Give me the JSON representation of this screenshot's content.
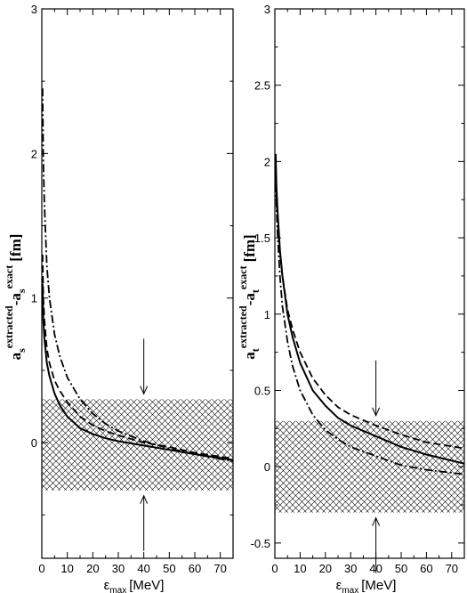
{
  "chart_data": [
    {
      "type": "line",
      "panel": "left",
      "ylabel": {
        "main": "a",
        "sub": "s",
        "sup": "extracted",
        "mid": "-a",
        "sub2": "s",
        "sup2": "exact",
        "unit": "[fm]"
      },
      "xlabel": {
        "main": "ε",
        "sub": "max",
        "unit": "[MeV]"
      },
      "xlim": [
        0,
        75
      ],
      "ylim": [
        -0.8,
        3
      ],
      "xticks": [
        0,
        10,
        20,
        30,
        40,
        50,
        60,
        70
      ],
      "yticks": [
        0,
        1,
        2,
        3
      ],
      "band": [
        -0.33,
        0.3
      ],
      "arrow_x": 40,
      "grid": false,
      "series": [
        {
          "style": "solid",
          "x": [
            0.3,
            0.6,
            1,
            2,
            3,
            5,
            7,
            10,
            15,
            20,
            25,
            30,
            40,
            50,
            60,
            75
          ],
          "values": [
            1.1,
            0.85,
            0.72,
            0.55,
            0.46,
            0.34,
            0.26,
            0.18,
            0.1,
            0.06,
            0.03,
            0.01,
            -0.02,
            -0.05,
            -0.08,
            -0.12
          ]
        },
        {
          "style": "dashed",
          "x": [
            0.3,
            0.6,
            1,
            2,
            3,
            5,
            7,
            10,
            15,
            20,
            25,
            30,
            40,
            50,
            60,
            75
          ],
          "values": [
            1.3,
            1.0,
            0.85,
            0.65,
            0.55,
            0.43,
            0.36,
            0.28,
            0.18,
            0.12,
            0.08,
            0.05,
            0.0,
            -0.03,
            -0.07,
            -0.11
          ]
        },
        {
          "style": "dashdot",
          "x": [
            0.3,
            0.6,
            1,
            2,
            3,
            5,
            7,
            10,
            15,
            20,
            25,
            30,
            40,
            50,
            60,
            75
          ],
          "values": [
            2.45,
            1.95,
            1.65,
            1.22,
            1.0,
            0.75,
            0.6,
            0.45,
            0.3,
            0.2,
            0.13,
            0.08,
            0.01,
            -0.04,
            -0.08,
            -0.13
          ]
        }
      ]
    },
    {
      "type": "line",
      "panel": "right",
      "ylabel": {
        "main": "a",
        "sub": "t",
        "sup": "extracted",
        "mid": "-a",
        "sub2": "t",
        "sup2": "exact",
        "unit": "[fm]"
      },
      "xlabel": {
        "main": "ε",
        "sub": "max",
        "unit": "[MeV]"
      },
      "xlim": [
        0,
        75
      ],
      "ylim": [
        -0.6,
        3
      ],
      "xticks": [
        0,
        10,
        20,
        30,
        40,
        50,
        60,
        70
      ],
      "yticks": [
        -0.5,
        0,
        0.5,
        1,
        1.5,
        2,
        2.5,
        3
      ],
      "ytick_labels": [
        "-0.5",
        "0",
        "0.5",
        "1",
        "1.5",
        "2",
        "2.5",
        "3"
      ],
      "band": [
        -0.3,
        0.3
      ],
      "arrow_x": 40,
      "grid": false,
      "series": [
        {
          "style": "solid",
          "x": [
            0.3,
            0.6,
            1,
            2,
            3,
            5,
            7,
            10,
            15,
            20,
            25,
            30,
            40,
            50,
            60,
            75
          ],
          "values": [
            2.05,
            1.85,
            1.7,
            1.42,
            1.25,
            1.0,
            0.85,
            0.68,
            0.5,
            0.4,
            0.32,
            0.27,
            0.2,
            0.13,
            0.08,
            0.02
          ]
        },
        {
          "style": "dashed",
          "x": [
            0.3,
            0.6,
            1,
            2,
            3,
            5,
            7,
            10,
            15,
            20,
            25,
            30,
            40,
            50,
            60,
            75
          ],
          "values": [
            2.0,
            1.8,
            1.62,
            1.4,
            1.25,
            1.03,
            0.9,
            0.75,
            0.58,
            0.47,
            0.39,
            0.34,
            0.27,
            0.21,
            0.16,
            0.12
          ]
        },
        {
          "style": "dashdot",
          "x": [
            0.3,
            0.6,
            1,
            2,
            3,
            5,
            7,
            10,
            15,
            20,
            25,
            30,
            40,
            50,
            60,
            75
          ],
          "values": [
            1.95,
            1.72,
            1.55,
            1.25,
            1.05,
            0.82,
            0.66,
            0.5,
            0.34,
            0.24,
            0.18,
            0.13,
            0.07,
            0.01,
            -0.02,
            -0.05
          ]
        }
      ]
    }
  ]
}
